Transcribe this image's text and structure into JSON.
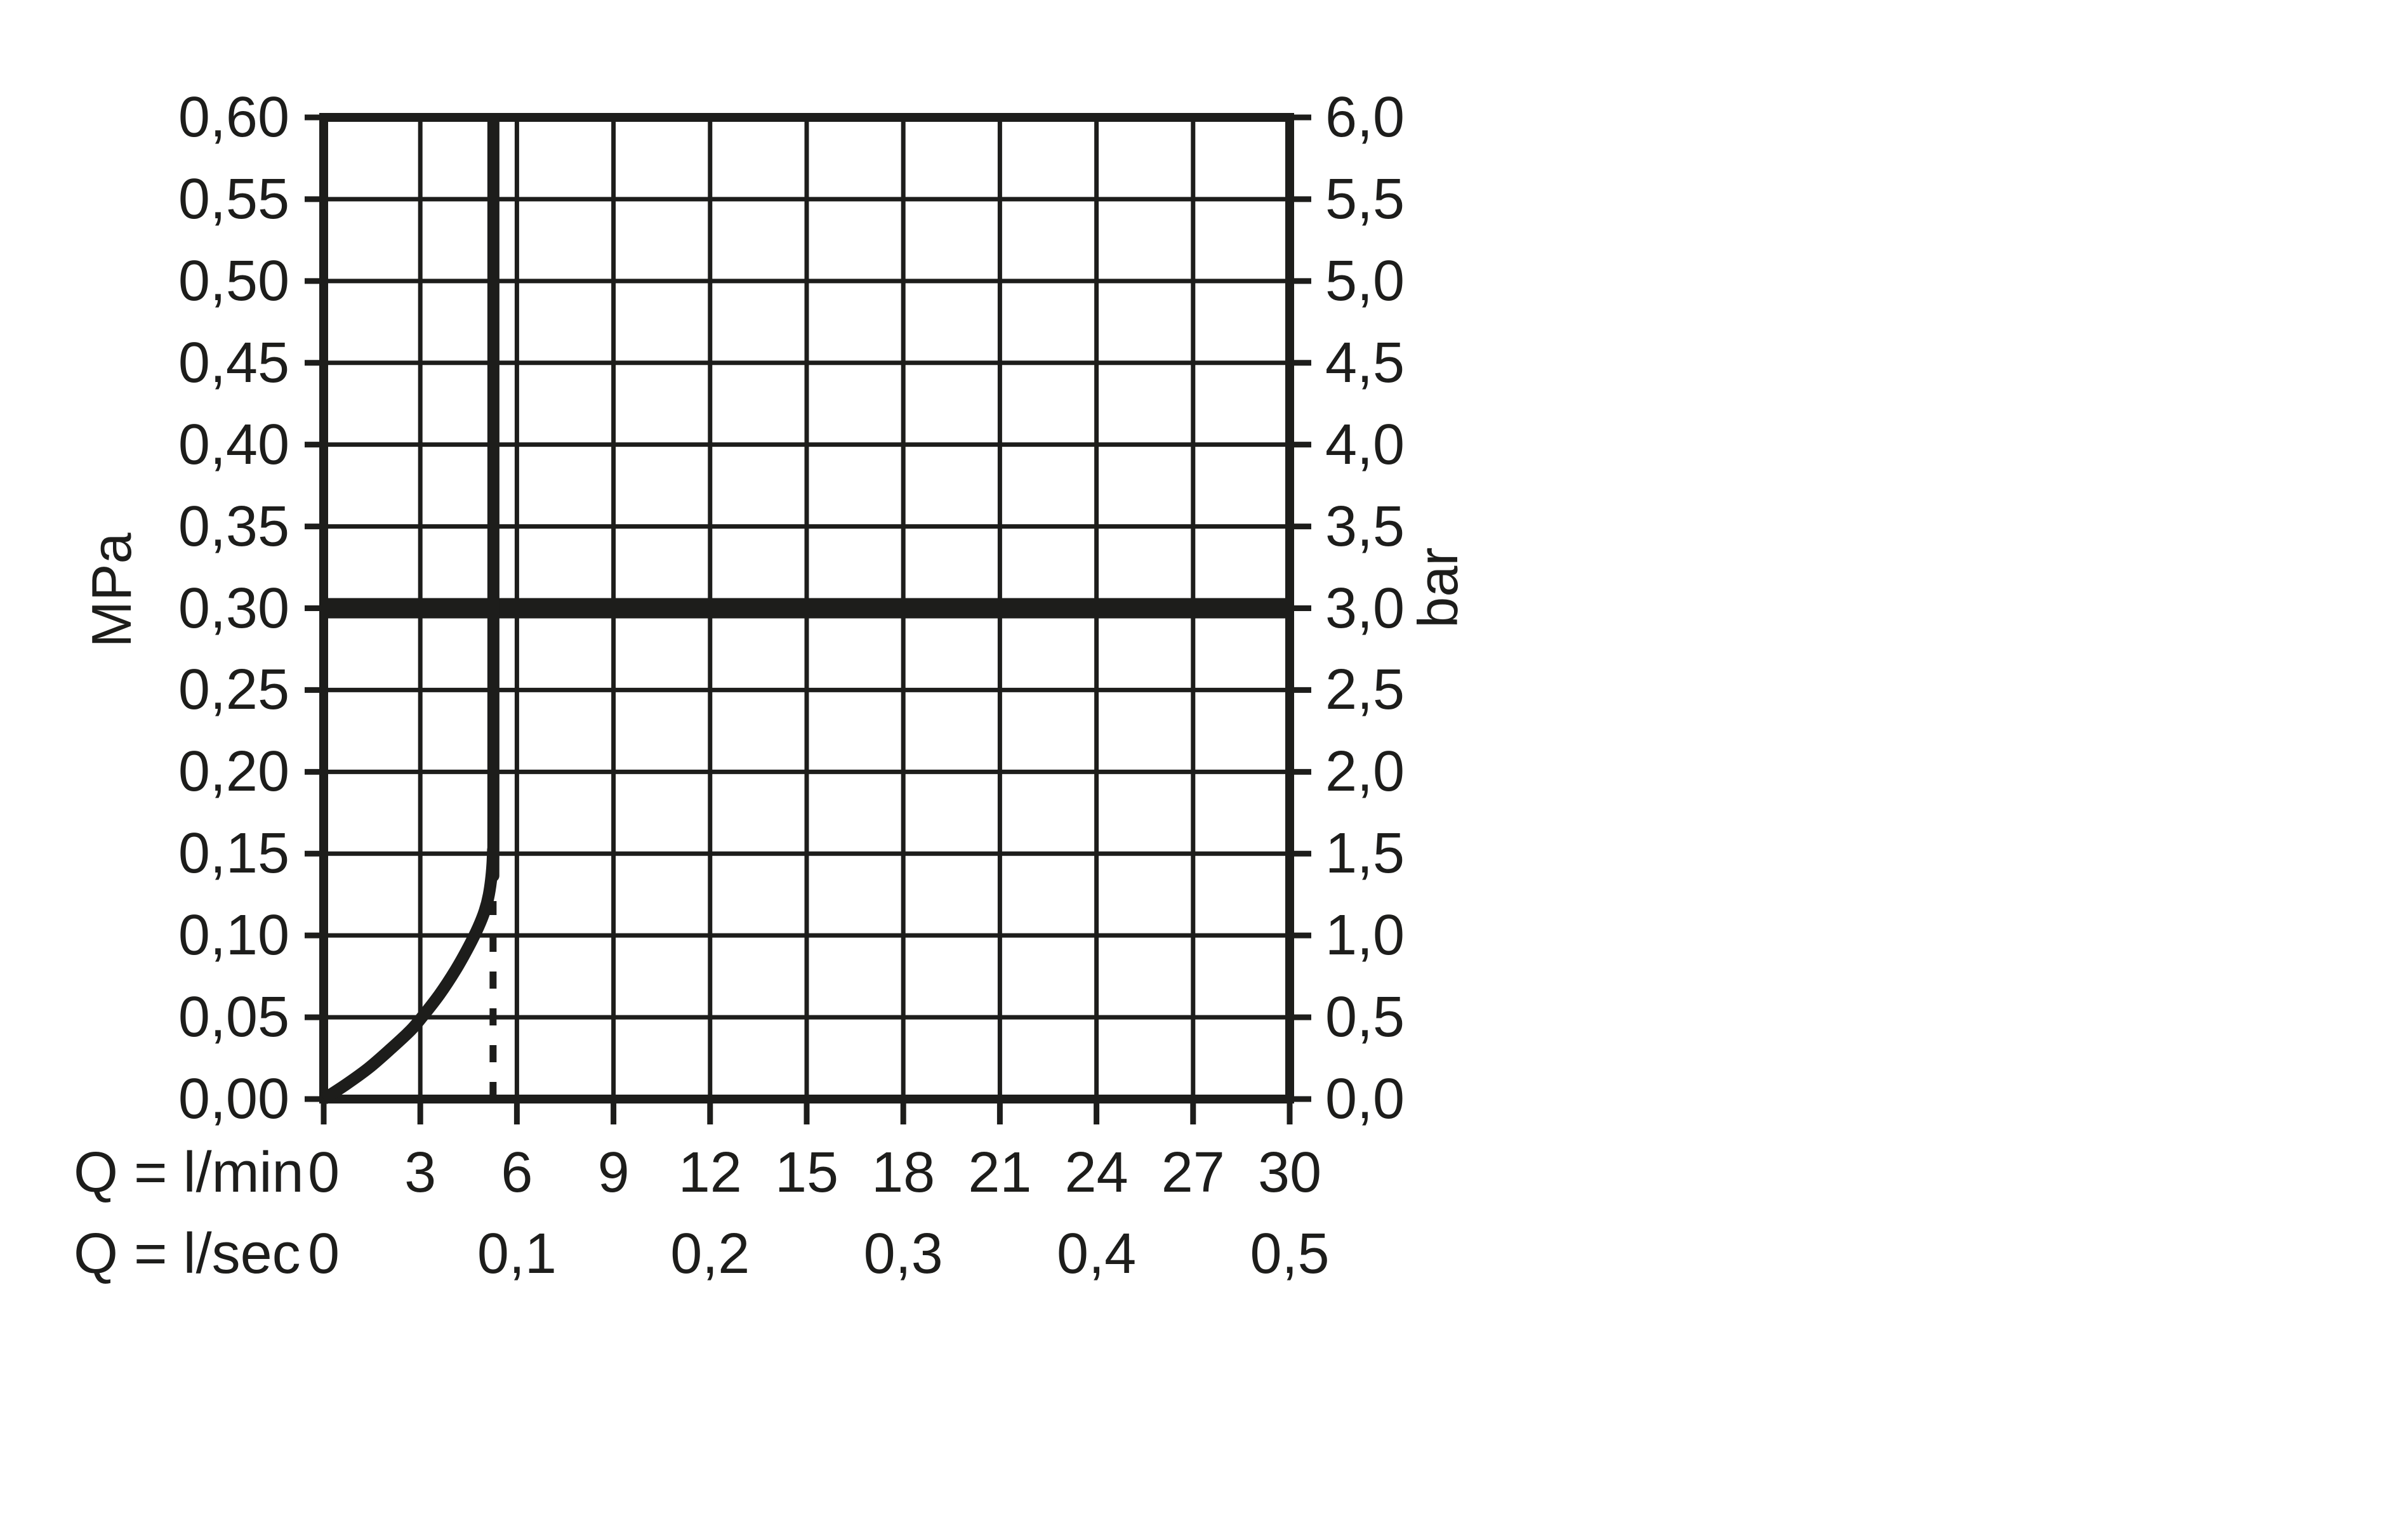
{
  "chart_data": {
    "type": "line",
    "title": "",
    "x_axis": {
      "name_row1": "Q = l/min",
      "name_row2": "Q = l/sec",
      "range_lmin": [
        0,
        30
      ],
      "gridline_step_lmin": 3,
      "ticks_lmin": [
        "0",
        "3",
        "6",
        "9",
        "12",
        "15",
        "18",
        "21",
        "24",
        "27",
        "30"
      ],
      "ticks_lmin_values": [
        0,
        3,
        6,
        9,
        12,
        15,
        18,
        21,
        24,
        27,
        30
      ],
      "ticks_lsec": [
        {
          "label": "0",
          "at_lmin": 0
        },
        {
          "label": "0,1",
          "at_lmin": 6
        },
        {
          "label": "0,2",
          "at_lmin": 12
        },
        {
          "label": "0,3",
          "at_lmin": 18
        },
        {
          "label": "0,4",
          "at_lmin": 24
        },
        {
          "label": "0,5",
          "at_lmin": 30
        }
      ]
    },
    "y_left": {
      "unit": "MPa",
      "range_mpa": [
        0,
        0.6
      ],
      "step_mpa": 0.05,
      "tick_labels": [
        "0,60",
        "0,55",
        "0,50",
        "0,45",
        "0,40",
        "0,35",
        "0,30",
        "0,25",
        "0,20",
        "0,15",
        "0,10",
        "0,05",
        "0,00"
      ],
      "tick_values": [
        0.6,
        0.55,
        0.5,
        0.45,
        0.4,
        0.35,
        0.3,
        0.25,
        0.2,
        0.15,
        0.1,
        0.05,
        0.0
      ]
    },
    "y_right": {
      "unit": "bar",
      "tick_labels": [
        "6,0",
        "5,5",
        "5,0",
        "4,5",
        "4,0",
        "3,5",
        "3,0",
        "2,5",
        "2,0",
        "1,5",
        "1,0",
        "0,5",
        "0,0"
      ],
      "tick_values": [
        6.0,
        5.5,
        5.0,
        4.5,
        4.0,
        3.5,
        3.0,
        2.5,
        2.0,
        1.5,
        1.0,
        0.5,
        0.0
      ]
    },
    "grid": "on",
    "legend": "none",
    "reference_line": {
      "y_mpa": 0.3,
      "y_bar": 3.0,
      "style": "thick-horizontal"
    },
    "dashed_guide": {
      "x_lmin": 5.26,
      "y_from_mpa": 0,
      "y_to_mpa": 0.121,
      "style": "dashed-vertical"
    },
    "series": [
      {
        "name": "pressure-flow-curve",
        "points_lmin_mpa": [
          [
            0,
            0
          ],
          [
            0.7,
            0.009
          ],
          [
            1.4,
            0.019
          ],
          [
            2.1,
            0.031
          ],
          [
            2.7,
            0.042
          ],
          [
            3.05,
            0.05
          ],
          [
            3.6,
            0.064
          ],
          [
            4.1,
            0.079
          ],
          [
            4.5,
            0.093
          ],
          [
            4.8,
            0.105
          ],
          [
            5.0,
            0.115
          ],
          [
            5.13,
            0.125
          ],
          [
            5.22,
            0.138
          ],
          [
            5.26,
            0.152
          ],
          [
            5.27,
            0.175
          ],
          [
            5.27,
            0.6
          ]
        ]
      }
    ],
    "colors": {
      "ink": "#1d1d1b",
      "background": "#ffffff"
    }
  }
}
